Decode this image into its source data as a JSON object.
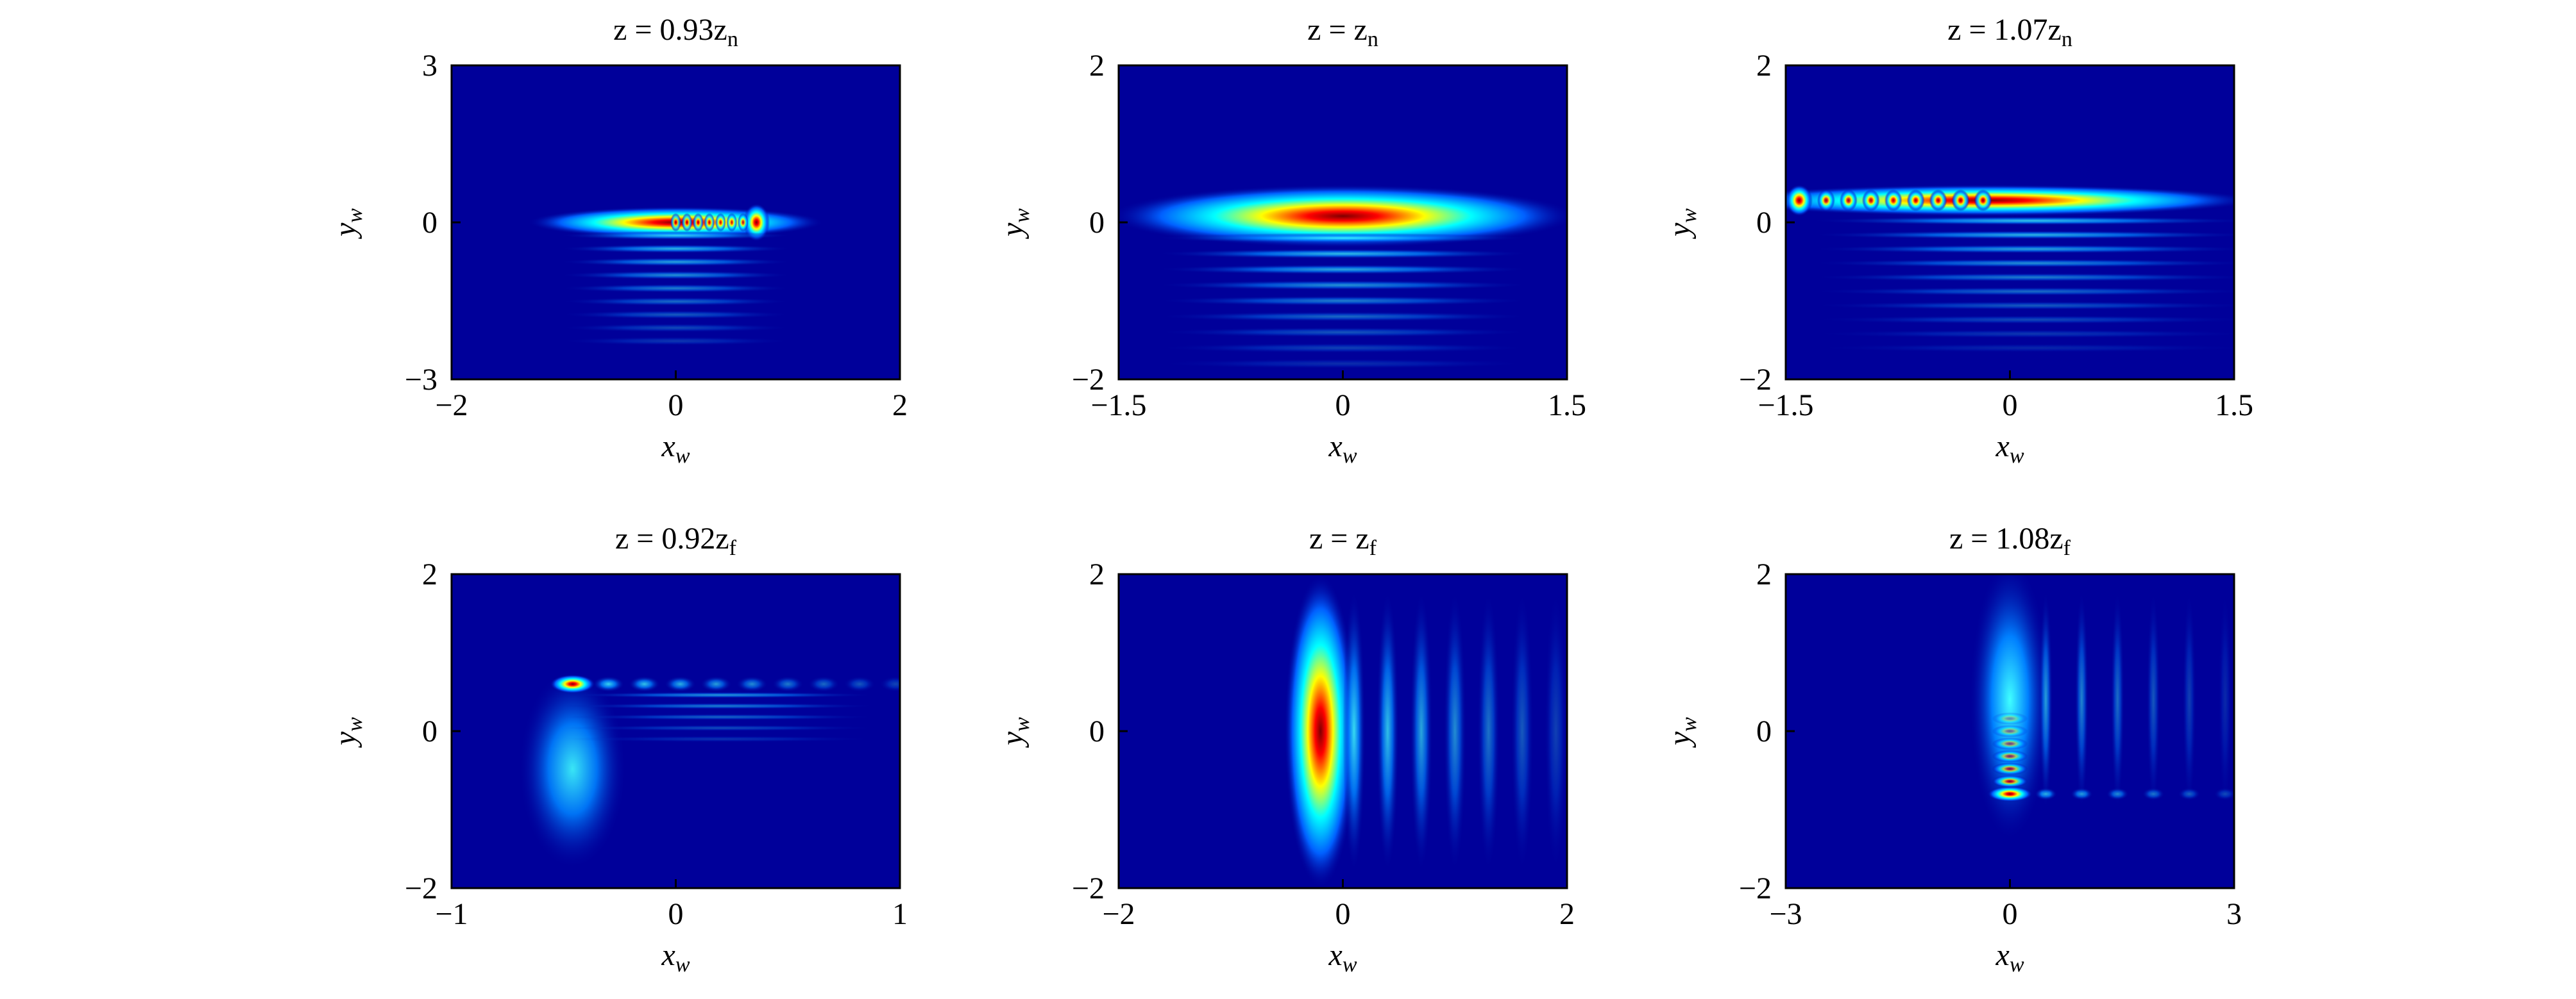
{
  "chart_data": [
    {
      "type": "heatmap",
      "title": "z = 0.93z",
      "title_sub": "n",
      "xlabel": "x",
      "xlabel_sub": "w",
      "ylabel": "y",
      "ylabel_sub": "w",
      "xlim": [
        -2,
        2
      ],
      "xticks": [
        {
          "value": -2,
          "label": "−2"
        },
        0,
        2
      ],
      "ylim": [
        -3,
        3
      ],
      "yticks": [
        {
          "value": -3,
          "label": "−3"
        },
        0,
        3
      ]
    },
    {
      "type": "heatmap",
      "title": "z = z",
      "title_sub": "n",
      "xlabel": "x",
      "xlabel_sub": "w",
      "ylabel": "y",
      "ylabel_sub": "w",
      "xlim": [
        -1.5,
        1.5
      ],
      "xticks": [
        {
          "value": -1.5,
          "label": "−1.5"
        },
        0,
        1.5
      ],
      "ylim": [
        -2,
        2
      ],
      "yticks": [
        {
          "value": -2,
          "label": "−2"
        },
        0,
        2
      ]
    },
    {
      "type": "heatmap",
      "title": "z = 1.07z",
      "title_sub": "n",
      "xlabel": "x",
      "xlabel_sub": "w",
      "ylabel": "y",
      "ylabel_sub": "w",
      "xlim": [
        -1.5,
        1.5
      ],
      "xticks": [
        {
          "value": -1.5,
          "label": "−1.5"
        },
        0,
        1.5
      ],
      "ylim": [
        -2,
        2
      ],
      "yticks": [
        {
          "value": -2,
          "label": "−2"
        },
        0,
        2
      ]
    },
    {
      "type": "heatmap",
      "title": "z = 0.92z",
      "title_sub": "f",
      "xlabel": "x",
      "xlabel_sub": "w",
      "ylabel": "y",
      "ylabel_sub": "w",
      "xlim": [
        -1,
        1
      ],
      "xticks": [
        {
          "value": -1,
          "label": "−1"
        },
        0,
        1
      ],
      "ylim": [
        -2,
        2
      ],
      "yticks": [
        {
          "value": -2,
          "label": "−2"
        },
        0,
        2
      ]
    },
    {
      "type": "heatmap",
      "title": "z = z",
      "title_sub": "f",
      "xlabel": "x",
      "xlabel_sub": "w",
      "ylabel": "y",
      "ylabel_sub": "w",
      "xlim": [
        -2,
        2
      ],
      "xticks": [
        {
          "value": -2,
          "label": "−2"
        },
        0,
        2
      ],
      "ylim": [
        -2,
        2
      ],
      "yticks": [
        {
          "value": -2,
          "label": "−2"
        },
        0,
        2
      ]
    },
    {
      "type": "heatmap",
      "title": "z = 1.08z",
      "title_sub": "f",
      "xlabel": "x",
      "xlabel_sub": "w",
      "ylabel": "y",
      "ylabel_sub": "w",
      "xlim": [
        -3,
        3
      ],
      "xticks": [
        {
          "value": -3,
          "label": "−3"
        },
        0,
        3
      ],
      "ylim": [
        -2,
        2
      ],
      "yticks": [
        {
          "value": -2,
          "label": "−2"
        },
        0,
        2
      ]
    }
  ]
}
